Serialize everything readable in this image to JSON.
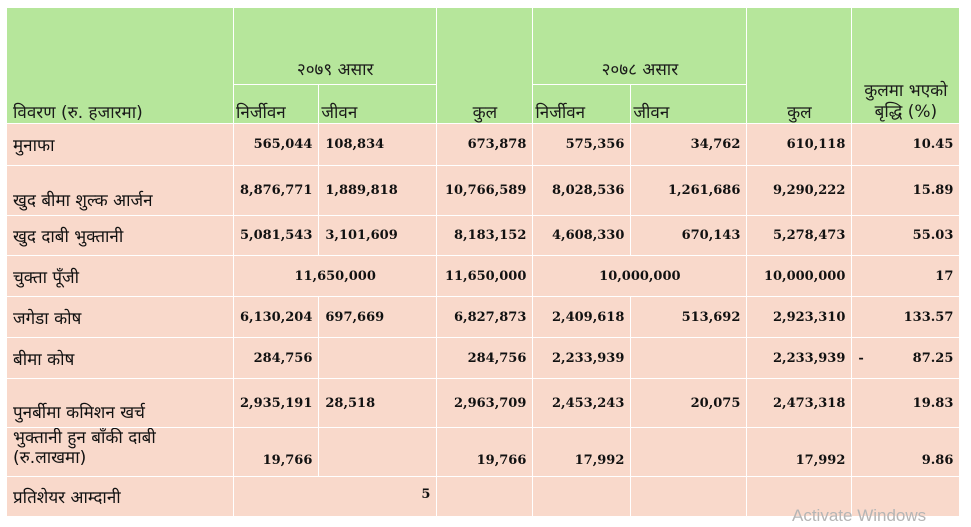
{
  "header": {
    "description": "विवरण (रु. हजारमा)",
    "period_2079": "२०७९ असार",
    "period_2078": "२०७८ असार",
    "non_life": "निर्जीवन",
    "life": "जीवन",
    "total": "कुल",
    "growth": "कुलमा भएको बृद्धि (%)"
  },
  "rows": [
    {
      "label": "मुनाफा",
      "nl79": "565,044",
      "l79": "108,834",
      "t79": "673,878",
      "nl78": "575,356",
      "l78": "34,762",
      "t78": "610,118",
      "growth": "10.45"
    },
    {
      "label": "खुद बीमा शुल्क आर्जन",
      "nl79": "8,876,771",
      "l79": "1,889,818",
      "t79": "10,766,589",
      "nl78": "8,028,536",
      "l78": "1,261,686",
      "t78": "9,290,222",
      "growth": "15.89"
    },
    {
      "label": "खुद दाबी भुक्तानी",
      "nl79": "5,081,543",
      "l79": "3,101,609",
      "t79": "8,183,152",
      "nl78": "4,608,330",
      "l78": "670,143",
      "t78": "5,278,473",
      "growth": "55.03"
    },
    {
      "label": "चुक्ता पूँजी",
      "merged79": "11,650,000",
      "t79": "11,650,000",
      "merged78": "10,000,000",
      "t78": "10,000,000",
      "growth": "17"
    },
    {
      "label": "जगेडा कोष",
      "nl79": "6,130,204",
      "l79": "697,669",
      "t79": "6,827,873",
      "nl78": "2,409,618",
      "l78": "513,692",
      "t78": "2,923,310",
      "growth": "133.57"
    },
    {
      "label": "बीमा कोष",
      "nl79": "284,756",
      "l79": "",
      "t79": "284,756",
      "nl78": "2,233,939",
      "l78": "",
      "t78": "2,233,939",
      "growth": "87.25",
      "growth_prefix": "-"
    },
    {
      "label": "पुनर्बीमा कमिशन खर्च",
      "nl79": "2,935,191",
      "l79": "28,518",
      "t79": "2,963,709",
      "nl78": "2,453,243",
      "l78": "20,075",
      "t78": "2,473,318",
      "growth": "19.83"
    },
    {
      "label_line1": "भुक्तानी हुन बाँकी दाबी",
      "label_line2": "(रु.लाखमा)",
      "nl79": "19,766",
      "l79": "",
      "t79": "19,766",
      "nl78": "17,992",
      "l78": "",
      "t78": "17,992",
      "growth": "9.86"
    },
    {
      "label": "प्रतिशेयर आम्दानी",
      "merged79": "5"
    }
  ],
  "watermark": "Activate Windows"
}
